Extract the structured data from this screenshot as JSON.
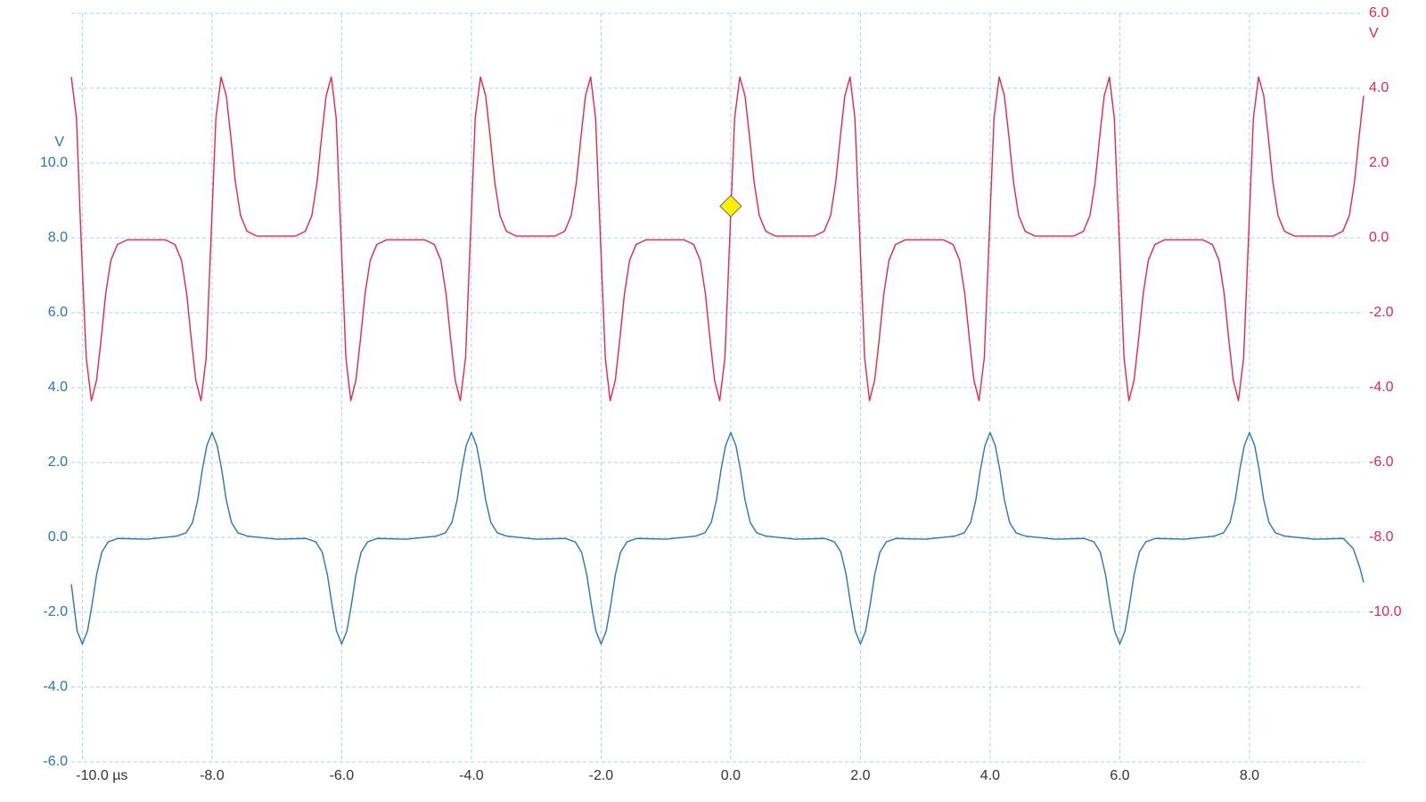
{
  "chart_data": {
    "type": "line",
    "xticks": [
      {
        "value": -10,
        "label": "-10.0 µs"
      },
      {
        "value": -8,
        "label": "-8.0"
      },
      {
        "value": -6,
        "label": "-6.0"
      },
      {
        "value": -4,
        "label": "-4.0"
      },
      {
        "value": -2,
        "label": "-2.0"
      },
      {
        "value": 0,
        "label": "0.0"
      },
      {
        "value": 2,
        "label": "2.0"
      },
      {
        "value": 4,
        "label": "4.0"
      },
      {
        "value": 6,
        "label": "6.0"
      },
      {
        "value": 8,
        "label": "8.0"
      }
    ],
    "xlim": [
      -10.17,
      9.76
    ],
    "ylim": [
      -6,
      14
    ],
    "yticks": [
      {
        "value": -6,
        "label": "-6.0"
      },
      {
        "value": -4,
        "label": "-4.0"
      },
      {
        "value": -2,
        "label": "-2.0"
      },
      {
        "value": 0,
        "label": "0.0"
      },
      {
        "value": 2,
        "label": "2.0"
      },
      {
        "value": 4,
        "label": "4.0"
      },
      {
        "value": 6,
        "label": "6.0"
      },
      {
        "value": 8,
        "label": "8.0"
      },
      {
        "value": 10,
        "label": "10.0"
      }
    ],
    "ylabel": "V",
    "y2lim": [
      -14,
      6
    ],
    "y2ticks": [
      {
        "value": -10,
        "label": "-10.0"
      },
      {
        "value": -8,
        "label": "-8.0"
      },
      {
        "value": -6,
        "label": "-6.0"
      },
      {
        "value": -4,
        "label": "-4.0"
      },
      {
        "value": -2,
        "label": "-2.0"
      },
      {
        "value": 0,
        "label": "0.0"
      },
      {
        "value": 2,
        "label": "2.0"
      },
      {
        "value": 4,
        "label": "4.0"
      },
      {
        "value": 6,
        "label": "6.0"
      }
    ],
    "y2label": "V",
    "grid": true,
    "trigger_marker": {
      "x": 0,
      "y": 0.85,
      "axis": "y2",
      "color": "#ffee00"
    },
    "series": [
      {
        "color": "#2a76b4",
        "axis": "y",
        "x": [
          -10.17,
          -10.08,
          -10.0,
          -9.92,
          -9.85,
          -9.78,
          -9.7,
          -9.6,
          -9.45,
          -9.0,
          -8.55,
          -8.4,
          -8.3,
          -8.22,
          -8.15,
          -8.08,
          -8.0,
          -7.92,
          -7.85,
          -7.78,
          -7.7,
          -7.6,
          -7.45,
          -7.0,
          -6.55,
          -6.4,
          -6.3,
          -6.22,
          -6.15,
          -6.08,
          -6.0,
          -5.92,
          -5.85,
          -5.78,
          -5.7,
          -5.6,
          -5.45,
          -5.0,
          -4.55,
          -4.4,
          -4.3,
          -4.22,
          -4.15,
          -4.08,
          -4.0,
          -3.92,
          -3.85,
          -3.78,
          -3.7,
          -3.6,
          -3.45,
          -3.0,
          -2.55,
          -2.4,
          -2.3,
          -2.22,
          -2.15,
          -2.08,
          -2.0,
          -1.92,
          -1.85,
          -1.78,
          -1.7,
          -1.6,
          -1.45,
          -1.0,
          -0.55,
          -0.4,
          -0.3,
          -0.22,
          -0.15,
          -0.08,
          0.0,
          0.08,
          0.15,
          0.22,
          0.3,
          0.4,
          0.55,
          1.0,
          1.45,
          1.6,
          1.7,
          1.78,
          1.85,
          1.92,
          2.0,
          2.08,
          2.15,
          2.22,
          2.3,
          2.4,
          2.55,
          3.0,
          3.45,
          3.6,
          3.7,
          3.78,
          3.85,
          3.92,
          4.0,
          4.08,
          4.15,
          4.22,
          4.3,
          4.4,
          4.55,
          5.0,
          5.45,
          5.6,
          5.7,
          5.78,
          5.85,
          5.92,
          6.0,
          6.08,
          6.15,
          6.22,
          6.3,
          6.4,
          6.55,
          7.0,
          7.45,
          7.6,
          7.7,
          7.78,
          7.85,
          7.92,
          8.0,
          8.08,
          8.15,
          8.22,
          8.3,
          8.4,
          8.55,
          9.0,
          9.45,
          9.6,
          9.7,
          9.76
        ],
        "values": [
          -1.25,
          -2.5,
          -2.85,
          -2.5,
          -1.8,
          -1.0,
          -0.4,
          -0.12,
          -0.03,
          -0.05,
          0.03,
          0.12,
          0.4,
          1.0,
          1.8,
          2.45,
          2.8,
          2.45,
          1.8,
          1.0,
          0.4,
          0.12,
          0.03,
          -0.05,
          -0.03,
          -0.12,
          -0.4,
          -1.0,
          -1.8,
          -2.5,
          -2.85,
          -2.5,
          -1.8,
          -1.0,
          -0.4,
          -0.12,
          -0.03,
          -0.05,
          0.03,
          0.12,
          0.4,
          1.0,
          1.8,
          2.45,
          2.8,
          2.45,
          1.8,
          1.0,
          0.4,
          0.12,
          0.03,
          -0.05,
          -0.03,
          -0.12,
          -0.4,
          -1.0,
          -1.8,
          -2.5,
          -2.85,
          -2.5,
          -1.8,
          -1.0,
          -0.4,
          -0.12,
          -0.03,
          -0.05,
          0.03,
          0.12,
          0.4,
          1.0,
          1.8,
          2.45,
          2.8,
          2.45,
          1.8,
          1.0,
          0.4,
          0.12,
          0.03,
          -0.05,
          -0.03,
          -0.12,
          -0.4,
          -1.0,
          -1.8,
          -2.5,
          -2.85,
          -2.5,
          -1.8,
          -1.0,
          -0.4,
          -0.12,
          -0.03,
          -0.05,
          0.03,
          0.12,
          0.4,
          1.0,
          1.8,
          2.45,
          2.8,
          2.45,
          1.8,
          1.0,
          0.4,
          0.12,
          0.03,
          -0.05,
          -0.03,
          -0.12,
          -0.4,
          -1.0,
          -1.8,
          -2.5,
          -2.85,
          -2.5,
          -1.8,
          -1.0,
          -0.4,
          -0.12,
          -0.03,
          -0.05,
          0.03,
          0.12,
          0.4,
          1.0,
          1.8,
          2.45,
          2.8,
          2.45,
          1.8,
          1.0,
          0.4,
          0.12,
          0.03,
          -0.05,
          -0.03,
          -0.3,
          -0.8,
          -1.2
        ]
      },
      {
        "color": "#e4284c",
        "axis": "y2",
        "x": [
          -10.17,
          -10.09,
          -10.02,
          -9.94,
          -9.86,
          -9.78,
          -9.71,
          -9.64,
          -9.56,
          -9.46,
          -9.31,
          -8.72,
          -8.57,
          -8.47,
          -8.39,
          -8.32,
          -8.25,
          -8.17,
          -8.09,
          -8.015,
          -7.94,
          -7.86,
          -7.78,
          -7.71,
          -7.64,
          -7.56,
          -7.46,
          -7.31,
          -6.71,
          -6.56,
          -6.46,
          -6.38,
          -6.31,
          -6.24,
          -6.16,
          -6.085,
          -6.01,
          -5.935,
          -5.86,
          -5.78,
          -5.71,
          -5.64,
          -5.56,
          -5.46,
          -5.31,
          -4.72,
          -4.57,
          -4.47,
          -4.39,
          -4.32,
          -4.25,
          -4.17,
          -4.09,
          -4.015,
          -3.94,
          -3.86,
          -3.78,
          -3.71,
          -3.64,
          -3.56,
          -3.46,
          -3.31,
          -2.71,
          -2.56,
          -2.46,
          -2.38,
          -2.31,
          -2.24,
          -2.16,
          -2.085,
          -2.01,
          -1.935,
          -1.86,
          -1.78,
          -1.71,
          -1.64,
          -1.56,
          -1.46,
          -1.31,
          -0.72,
          -0.57,
          -0.47,
          -0.39,
          -0.32,
          -0.25,
          -0.17,
          -0.09,
          -0.015,
          0.06,
          0.14,
          0.22,
          0.29,
          0.36,
          0.44,
          0.54,
          0.69,
          1.29,
          1.44,
          1.54,
          1.62,
          1.69,
          1.76,
          1.84,
          1.915,
          1.99,
          2.065,
          2.14,
          2.22,
          2.29,
          2.36,
          2.44,
          2.54,
          2.69,
          3.28,
          3.43,
          3.53,
          3.61,
          3.68,
          3.75,
          3.83,
          3.91,
          3.985,
          4.06,
          4.14,
          4.22,
          4.29,
          4.36,
          4.44,
          4.54,
          4.69,
          5.29,
          5.44,
          5.54,
          5.62,
          5.69,
          5.76,
          5.84,
          5.915,
          5.99,
          6.065,
          6.14,
          6.22,
          6.29,
          6.36,
          6.44,
          6.54,
          6.69,
          7.28,
          7.43,
          7.53,
          7.61,
          7.68,
          7.75,
          7.83,
          7.91,
          7.985,
          8.06,
          8.14,
          8.22,
          8.29,
          8.36,
          8.44,
          8.54,
          8.69,
          9.29,
          9.44,
          9.54,
          9.62,
          9.69,
          9.76
        ],
        "values": [
          4.3,
          3.2,
          0.0,
          -3.2,
          -4.35,
          -3.8,
          -2.7,
          -1.5,
          -0.6,
          -0.18,
          -0.05,
          -0.05,
          -0.18,
          -0.6,
          -1.5,
          -2.7,
          -3.8,
          -4.35,
          -3.2,
          0.0,
          3.2,
          4.3,
          3.8,
          2.7,
          1.5,
          0.6,
          0.18,
          0.05,
          0.05,
          0.18,
          0.6,
          1.5,
          2.7,
          3.8,
          4.3,
          3.2,
          0.0,
          -3.2,
          -4.35,
          -3.8,
          -2.7,
          -1.5,
          -0.6,
          -0.18,
          -0.05,
          -0.05,
          -0.18,
          -0.6,
          -1.5,
          -2.7,
          -3.8,
          -4.35,
          -3.2,
          0.0,
          3.2,
          4.3,
          3.8,
          2.7,
          1.5,
          0.6,
          0.18,
          0.05,
          0.05,
          0.18,
          0.6,
          1.5,
          2.7,
          3.8,
          4.3,
          3.2,
          0.0,
          -3.2,
          -4.35,
          -3.8,
          -2.7,
          -1.5,
          -0.6,
          -0.18,
          -0.05,
          -0.05,
          -0.18,
          -0.6,
          -1.5,
          -2.7,
          -3.8,
          -4.35,
          -3.2,
          0.0,
          3.2,
          4.3,
          3.8,
          2.7,
          1.5,
          0.6,
          0.18,
          0.05,
          0.05,
          0.18,
          0.6,
          1.5,
          2.7,
          3.8,
          4.3,
          3.2,
          0.0,
          -3.2,
          -4.35,
          -3.8,
          -2.7,
          -1.5,
          -0.6,
          -0.18,
          -0.05,
          -0.05,
          -0.18,
          -0.6,
          -1.5,
          -2.7,
          -3.8,
          -4.35,
          -3.2,
          0.0,
          3.2,
          4.3,
          3.8,
          2.7,
          1.5,
          0.6,
          0.18,
          0.05,
          0.05,
          0.18,
          0.6,
          1.5,
          2.7,
          3.8,
          4.3,
          3.2,
          0.0,
          -3.2,
          -4.35,
          -3.8,
          -2.7,
          -1.5,
          -0.6,
          -0.18,
          -0.05,
          -0.05,
          -0.18,
          -0.6,
          -1.5,
          -2.7,
          -3.8,
          -4.35,
          -3.2,
          0.0,
          3.2,
          4.3,
          3.8,
          2.7,
          1.5,
          0.6,
          0.18,
          0.05,
          0.05,
          0.18,
          0.6,
          1.5,
          2.7,
          3.8
        ]
      }
    ]
  }
}
